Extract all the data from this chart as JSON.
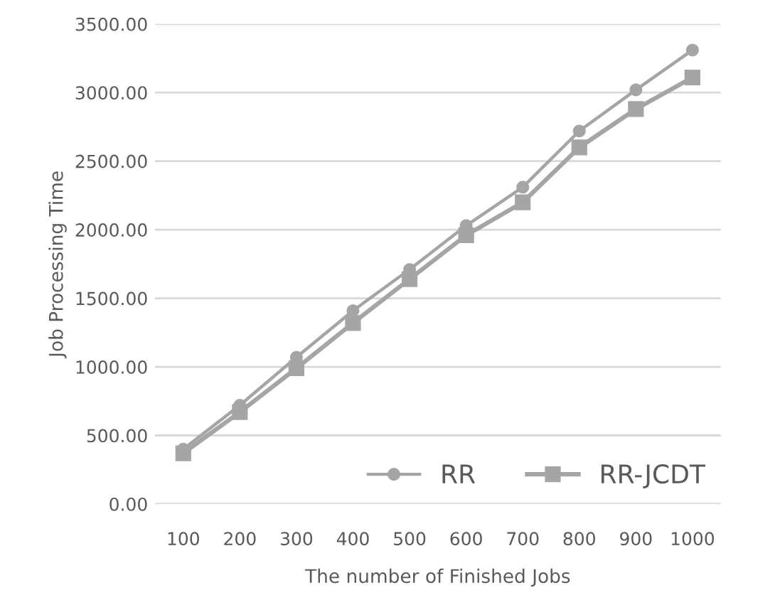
{
  "chart_data": {
    "type": "line",
    "xlabel": "The number of Finished Jobs",
    "ylabel": "Job Processing Time",
    "categories": [
      "100",
      "200",
      "300",
      "400",
      "500",
      "600",
      "700",
      "800",
      "900",
      "1000"
    ],
    "series": [
      {
        "name": "RR",
        "color": "#a5a5a5",
        "marker": "circle",
        "values": [
          400,
          720,
          1070,
          1410,
          1710,
          2030,
          2310,
          2720,
          3020,
          3310
        ]
      },
      {
        "name": "RR-JCDT",
        "color": "#a5a5a5",
        "marker": "square",
        "values": [
          370,
          670,
          990,
          1320,
          1640,
          1960,
          2200,
          2600,
          2880,
          3110
        ]
      }
    ],
    "ylim": [
      0,
      3500
    ],
    "yticks": [
      {
        "value": 0,
        "label": "0.00"
      },
      {
        "value": 500,
        "label": "500.00"
      },
      {
        "value": 1000,
        "label": "1000.00"
      },
      {
        "value": 1500,
        "label": "1500.00"
      },
      {
        "value": 2000,
        "label": "2000.00"
      },
      {
        "value": 2500,
        "label": "2500.00"
      },
      {
        "value": 3000,
        "label": "3000.00"
      },
      {
        "value": 3500,
        "label": "3500.00"
      }
    ],
    "grid": "y",
    "legend": "bottom right"
  }
}
